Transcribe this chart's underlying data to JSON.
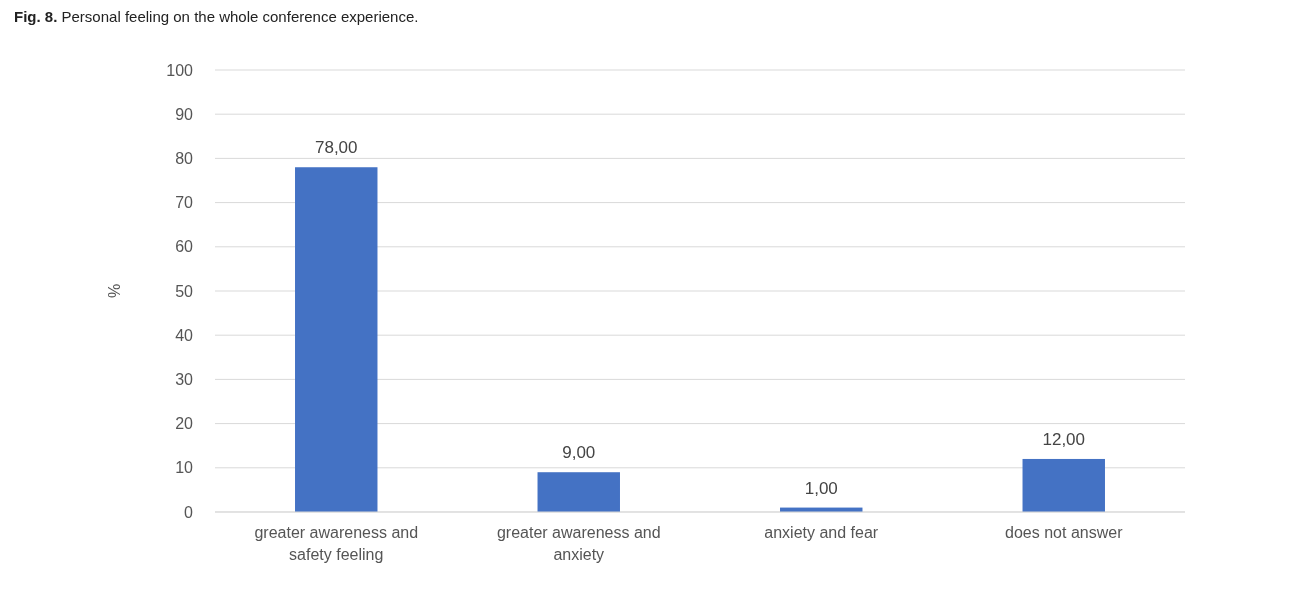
{
  "chart_data": {
    "type": "bar",
    "title": "Fig. 8. Personal feeling on the whole conference experience.",
    "ylabel": "%",
    "categories": [
      "greater awareness and safety feeling",
      "greater awareness and anxiety",
      "anxiety and fear",
      "does not answer"
    ],
    "values": [
      78,
      9,
      1,
      12
    ],
    "value_labels": [
      "78,00",
      "9,00",
      "1,00",
      "12,00"
    ],
    "color": "#4472c4",
    "ylim": [
      0,
      100
    ],
    "yticks": [
      0,
      10,
      20,
      30,
      40,
      50,
      60,
      70,
      80,
      90,
      100
    ],
    "grid": "y"
  }
}
